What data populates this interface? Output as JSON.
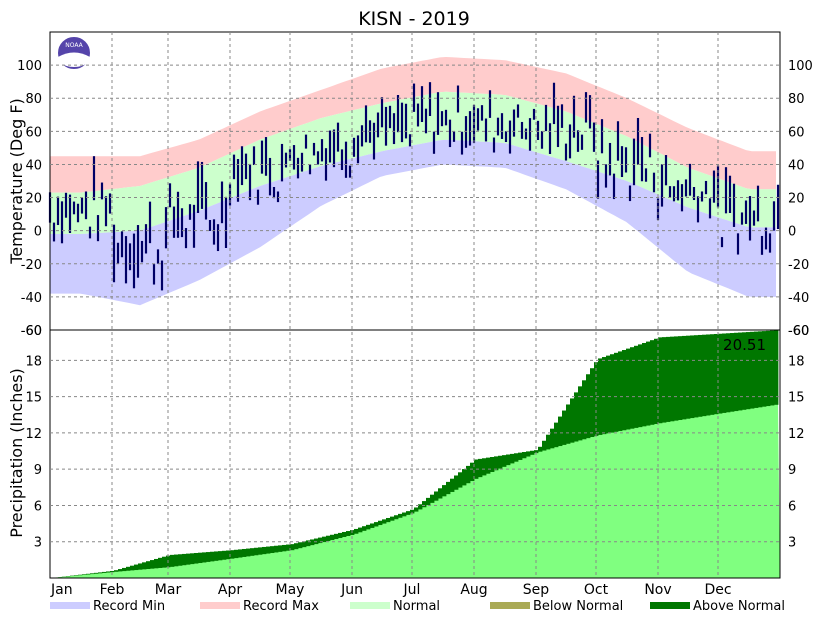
{
  "chart_data": {
    "type": "area",
    "title": "KISN - 2019",
    "months": [
      "Jan",
      "Feb",
      "Mar",
      "Apr",
      "May",
      "Jun",
      "Jul",
      "Aug",
      "Sep",
      "Oct",
      "Nov",
      "Dec"
    ],
    "temperature_panel": {
      "ylabel": "Temperature (Deg F)",
      "ylim": [
        -60,
        120
      ],
      "left_ticks": [
        "100",
        "80",
        "60",
        "40",
        "20",
        "0",
        "-20",
        "-40",
        "-60"
      ],
      "right_ticks": [
        "100",
        "80",
        "60",
        "40",
        "20",
        "0",
        "-20",
        "-40",
        "-60"
      ],
      "grid": true,
      "record_max_by_month": [
        45,
        45,
        55,
        72,
        85,
        98,
        105,
        103,
        95,
        80,
        62,
        48
      ],
      "record_min_by_month": [
        -38,
        -45,
        -30,
        -10,
        15,
        33,
        40,
        38,
        25,
        5,
        -25,
        -40
      ],
      "normal_high_by_month": [
        23,
        27,
        38,
        55,
        68,
        77,
        84,
        82,
        72,
        57,
        38,
        25
      ],
      "normal_low_by_month": [
        -2,
        0,
        12,
        27,
        39,
        48,
        55,
        53,
        42,
        30,
        14,
        2
      ],
      "actual_range_by_month": [
        [
          -10,
          45
        ],
        [
          -38,
          35
        ],
        [
          -20,
          45
        ],
        [
          15,
          65
        ],
        [
          30,
          75
        ],
        [
          40,
          85
        ],
        [
          45,
          95
        ],
        [
          45,
          92
        ],
        [
          40,
          90
        ],
        [
          15,
          75
        ],
        [
          5,
          55
        ],
        [
          -15,
          40
        ]
      ]
    },
    "precipitation_panel": {
      "ylabel": "Precipitation (Inches)",
      "left_ticks": [
        "3",
        "6",
        "9",
        "12",
        "15",
        "18",
        "-60"
      ],
      "right_ticks": [
        "3",
        "6",
        "9",
        "12",
        "15",
        "18",
        "-60"
      ],
      "ylim": [
        0,
        20.51
      ],
      "grid": true,
      "total_label": "20.51",
      "cumulative_normal_by_month_end": [
        0.5,
        0.9,
        1.6,
        2.3,
        3.6,
        5.4,
        8.2,
        10.4,
        11.8,
        12.8,
        13.6,
        14.4
      ],
      "cumulative_actual_by_month_end": [
        0.6,
        1.9,
        2.3,
        2.8,
        4.0,
        5.7,
        9.8,
        10.6,
        18.1,
        19.9,
        20.2,
        20.51
      ]
    },
    "legend": {
      "placement": "bottom",
      "items": [
        {
          "label": "Record Min",
          "color": "#ccccff"
        },
        {
          "label": "Record Max",
          "color": "#ffcccc"
        },
        {
          "label": "Normal",
          "color": "#ccffcc"
        },
        {
          "label": "Below Normal",
          "color": "#aaaa55"
        },
        {
          "label": "Above Normal",
          "color": "#007700"
        }
      ]
    },
    "colors": {
      "actual": "#000066",
      "normal_precip": "#80ff80",
      "logo": "#5544aa"
    },
    "logo_text": "NOAA"
  }
}
